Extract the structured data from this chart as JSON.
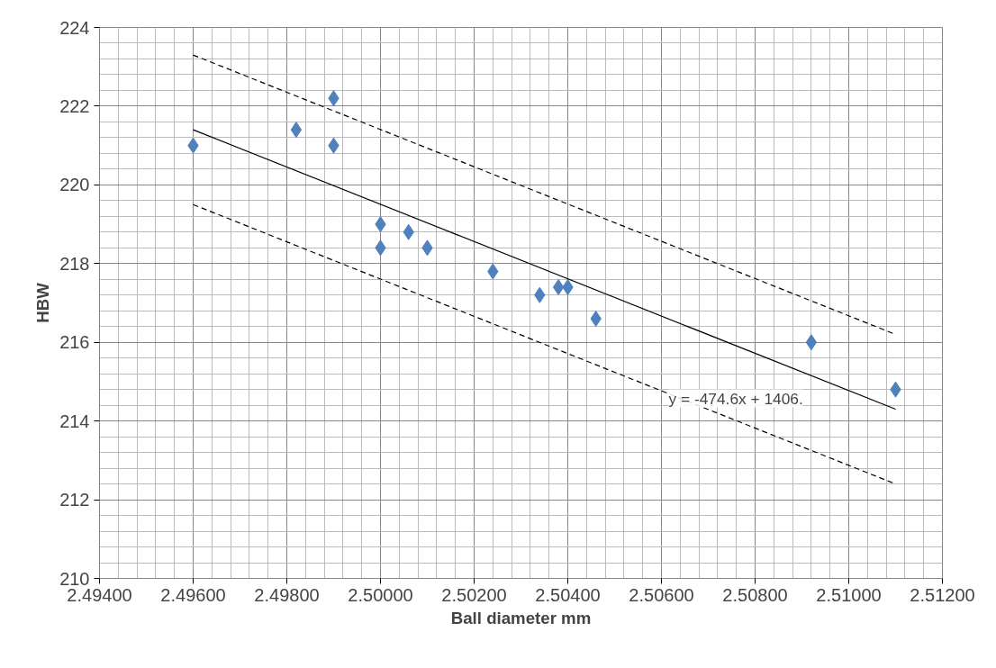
{
  "chart_data": {
    "type": "scatter",
    "xlabel": "Ball diameter mm",
    "ylabel": "HBW",
    "grid": true,
    "xlim": [
      2.494,
      2.512
    ],
    "ylim": [
      210,
      224
    ],
    "xticks": [
      {
        "value": 2.494,
        "label": "2.49400"
      },
      {
        "value": 2.496,
        "label": "2.49600"
      },
      {
        "value": 2.498,
        "label": "2.49800"
      },
      {
        "value": 2.5,
        "label": "2.50000"
      },
      {
        "value": 2.502,
        "label": "2.50200"
      },
      {
        "value": 2.504,
        "label": "2.50400"
      },
      {
        "value": 2.506,
        "label": "2.50600"
      },
      {
        "value": 2.508,
        "label": "2.50800"
      },
      {
        "value": 2.51,
        "label": "2.51000"
      },
      {
        "value": 2.512,
        "label": "2.51200"
      }
    ],
    "yticks": [
      210,
      212,
      214,
      216,
      218,
      220,
      222,
      224
    ],
    "series": [
      {
        "marker": "diamond",
        "color": "#4f81bd",
        "x": [
          2.496,
          2.4982,
          2.499,
          2.499,
          2.5,
          2.5,
          2.5006,
          2.501,
          2.5024,
          2.5034,
          2.5038,
          2.504,
          2.5046,
          2.5092,
          2.511
        ],
        "values": [
          221.0,
          221.4,
          222.2,
          221.0,
          219.0,
          218.4,
          218.8,
          218.4,
          217.8,
          217.2,
          217.4,
          217.4,
          216.6,
          216.0,
          214.8
        ]
      },
      {
        "type": "line",
        "color": "#000000",
        "line_style": "solid",
        "x": [
          2.496,
          2.511
        ],
        "values": [
          221.4,
          214.3
        ]
      },
      {
        "type": "line",
        "color": "#000000",
        "line_style": "dashed",
        "x": [
          2.496,
          2.511
        ],
        "values": [
          223.3,
          216.2
        ]
      },
      {
        "type": "line",
        "color": "#000000",
        "line_style": "dashed",
        "x": [
          2.496,
          2.511
        ],
        "values": [
          219.5,
          212.4
        ]
      }
    ],
    "annotations": [
      "y = -474.6x + 1406."
    ]
  }
}
